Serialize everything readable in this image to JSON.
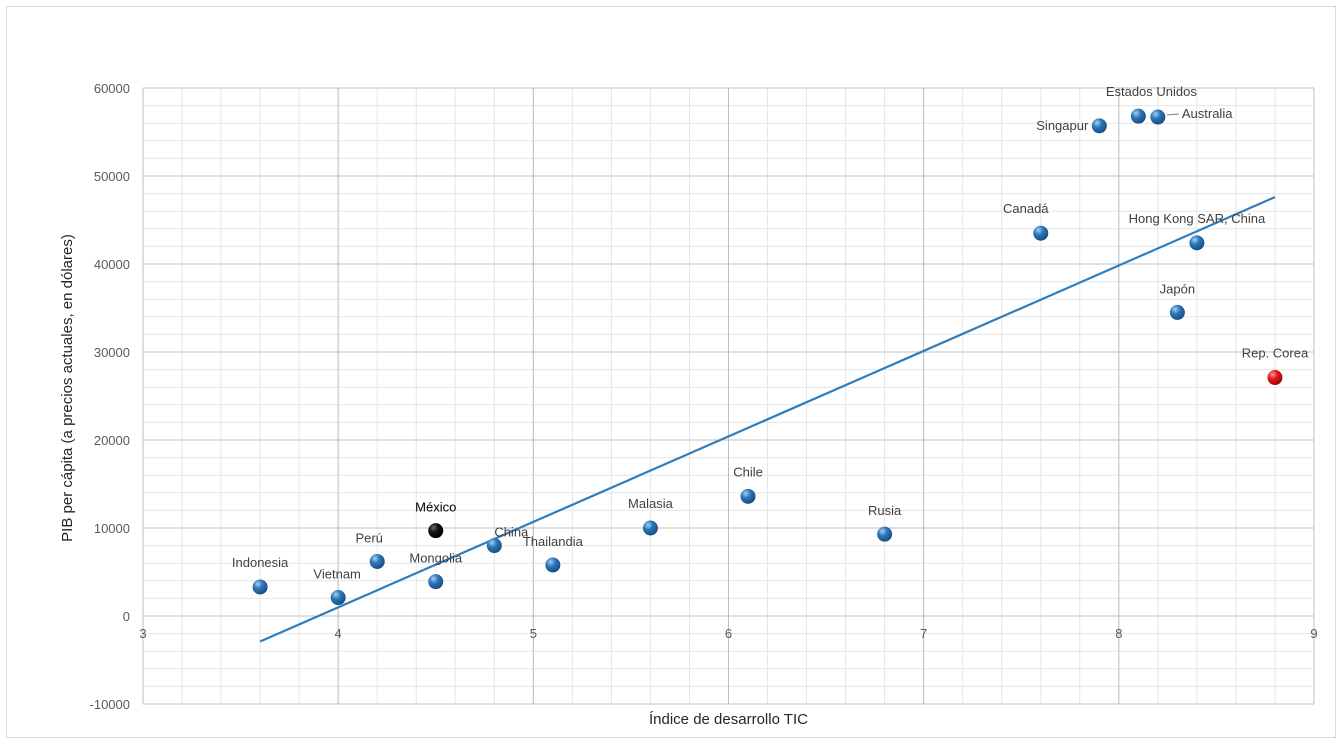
{
  "chart_data": {
    "type": "scatter",
    "xlabel": "Índice de desarrollo TIC",
    "ylabel": "PIB per cápita (a precios actuales, en dólares)",
    "xlim": [
      3,
      9
    ],
    "ylim": [
      -10000,
      60000
    ],
    "x_major_step": 1,
    "x_minor_step": 0.2,
    "y_major_step": 10000,
    "y_minor_step": 2000,
    "grid": true,
    "x_ticks": [
      "3",
      "4",
      "5",
      "6",
      "7",
      "8",
      "9"
    ],
    "y_ticks": [
      "-10000",
      "0",
      "10000",
      "20000",
      "30000",
      "40000",
      "50000",
      "60000"
    ],
    "colors": {
      "default_point": "#2e75b6",
      "highlight_mexico": "#000000",
      "highlight_korea": "#e8141b",
      "trendline": "#2e7dbd",
      "grid_major": "#bfbfbf",
      "grid_minor": "#e6e6e6"
    },
    "points": [
      {
        "label": "Indonesia",
        "x": 3.6,
        "y": 3300,
        "color": "default"
      },
      {
        "label": "Vietnam",
        "x": 4.0,
        "y": 2100,
        "color": "default"
      },
      {
        "label": "Perú",
        "x": 4.2,
        "y": 6200,
        "color": "default"
      },
      {
        "label": "México",
        "x": 4.5,
        "y": 9700,
        "color": "mexico"
      },
      {
        "label": "Mongolia",
        "x": 4.5,
        "y": 3900,
        "color": "default"
      },
      {
        "label": "China",
        "x": 4.8,
        "y": 8000,
        "color": "default"
      },
      {
        "label": "Thailandia",
        "x": 5.1,
        "y": 5800,
        "color": "default"
      },
      {
        "label": "Malasia",
        "x": 5.6,
        "y": 10000,
        "color": "default"
      },
      {
        "label": "Chile",
        "x": 6.1,
        "y": 13600,
        "color": "default"
      },
      {
        "label": "Rusia",
        "x": 6.8,
        "y": 9300,
        "color": "default"
      },
      {
        "label": "Canadá",
        "x": 7.6,
        "y": 43500,
        "color": "default"
      },
      {
        "label": "Singapur",
        "x": 7.9,
        "y": 55700,
        "color": "default"
      },
      {
        "label": "Estados Unidos",
        "x": 8.1,
        "y": 56800,
        "color": "default"
      },
      {
        "label": "Australia",
        "x": 8.2,
        "y": 56700,
        "color": "default"
      },
      {
        "label": "Hong Kong SAR, China",
        "x": 8.4,
        "y": 42400,
        "color": "default"
      },
      {
        "label": "Japón",
        "x": 8.3,
        "y": 34500,
        "color": "default"
      },
      {
        "label": "Rep. Corea",
        "x": 8.8,
        "y": 27100,
        "color": "korea"
      }
    ],
    "trendline": {
      "x": [
        3.6,
        8.8
      ],
      "y": [
        -2900,
        47600
      ]
    }
  }
}
